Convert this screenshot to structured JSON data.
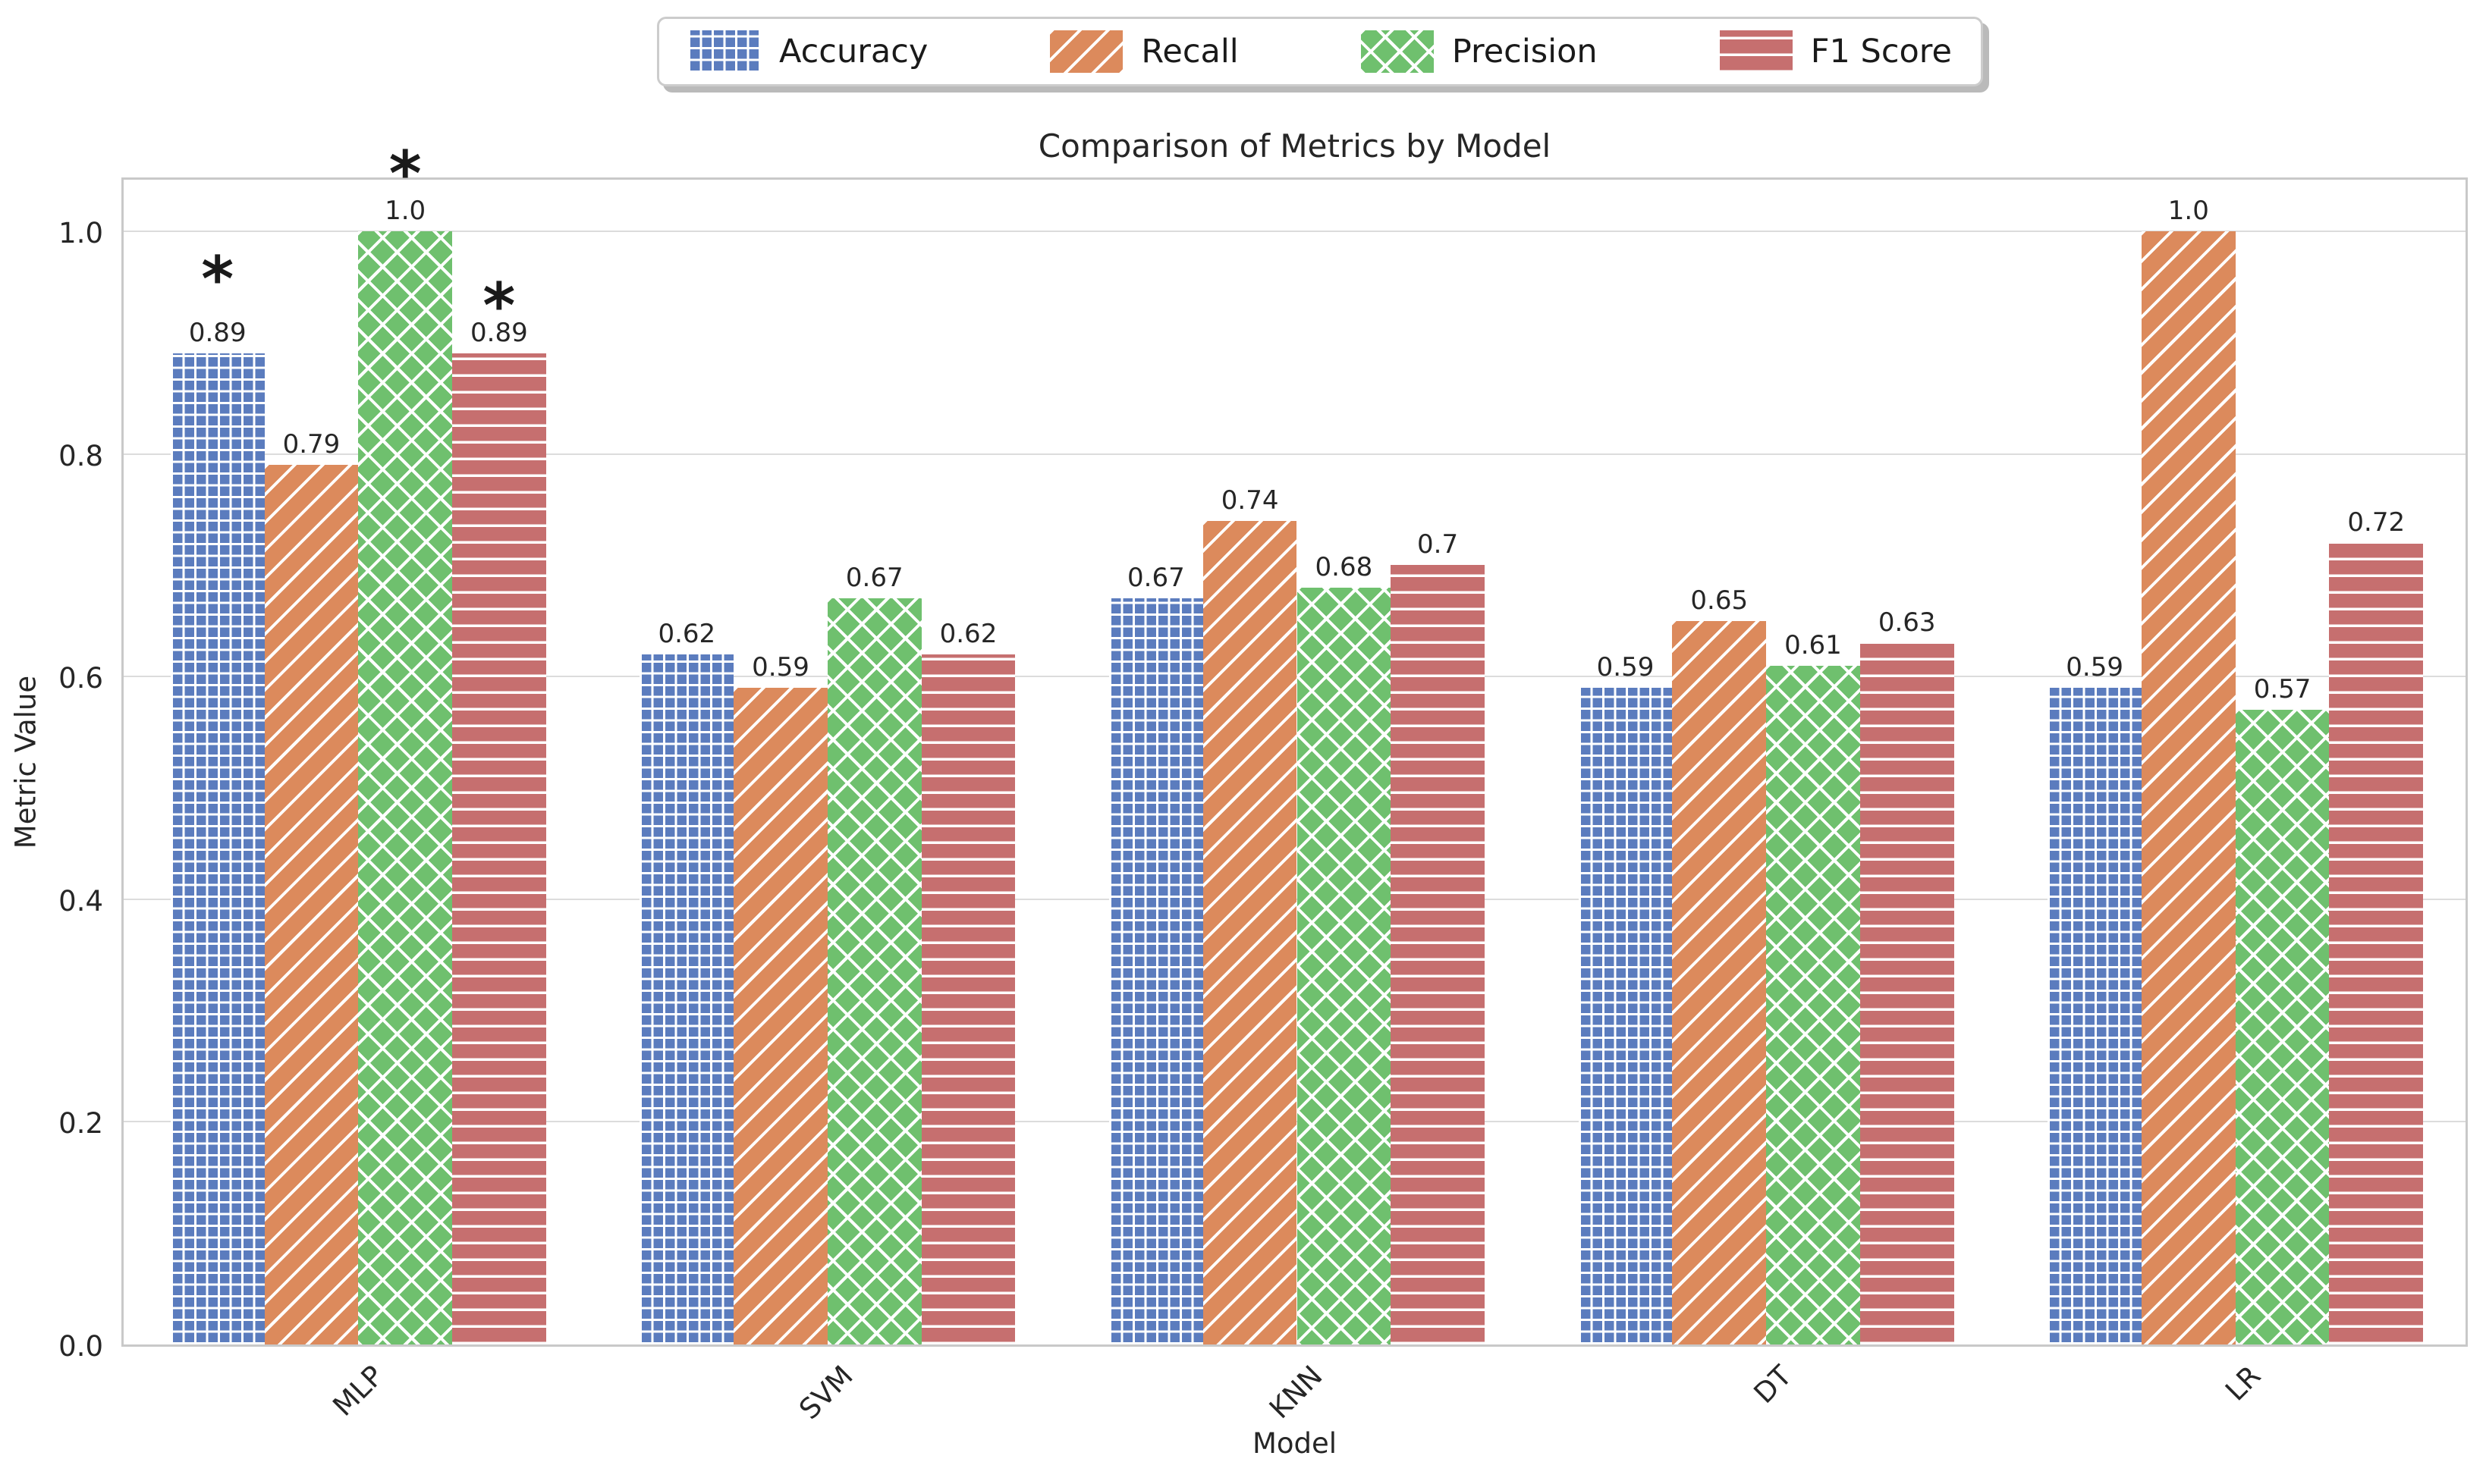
{
  "chart_data": {
    "type": "bar",
    "title": "Comparison of Metrics by Model",
    "xlabel": "Model",
    "ylabel": "Metric Value",
    "categories": [
      "MLP",
      "SVM",
      "KNN",
      "DT",
      "LR"
    ],
    "series": [
      {
        "name": "Accuracy",
        "color": "#5b7cbe",
        "hatch": "grid",
        "values": [
          0.89,
          0.62,
          0.67,
          0.59,
          0.59
        ],
        "labels": [
          "0.89",
          "0.62",
          "0.67",
          "0.59",
          "0.59"
        ]
      },
      {
        "name": "Recall",
        "color": "#dc8a5c",
        "hatch": "diagonal",
        "values": [
          0.79,
          0.59,
          0.74,
          0.65,
          1.0
        ],
        "labels": [
          "0.79",
          "0.59",
          "0.74",
          "0.65",
          "1.0"
        ]
      },
      {
        "name": "Precision",
        "color": "#6fc06e",
        "hatch": "cross",
        "values": [
          1.0,
          0.67,
          0.68,
          0.61,
          0.57
        ],
        "labels": [
          "1.0",
          "0.67",
          "0.68",
          "0.61",
          "0.57"
        ]
      },
      {
        "name": "F1 Score",
        "color": "#c66f6f",
        "hatch": "horizontal",
        "values": [
          0.89,
          0.62,
          0.7,
          0.63,
          0.72
        ],
        "labels": [
          "0.89",
          "0.62",
          "0.7",
          "0.63",
          "0.72"
        ]
      }
    ],
    "yticks": [
      "0.0",
      "0.2",
      "0.4",
      "0.6",
      "0.8",
      "1.0"
    ],
    "ylim": [
      0,
      1.05
    ],
    "grid": true,
    "legend_position": "top-center",
    "annotations": [
      {
        "text": "*",
        "category": "MLP",
        "series": "Accuracy",
        "y": 0.968
      },
      {
        "text": "*",
        "category": "MLP",
        "series": "Precision",
        "y": 1.063
      },
      {
        "text": "*",
        "category": "MLP",
        "series": "F1 Score",
        "y": 0.944
      }
    ],
    "style": {
      "grid_color": "#dcdcdc",
      "spine_color": "#c9c9c9",
      "text_color": "#262626",
      "annotation_color": "#1a1a1a",
      "background": "#ffffff"
    }
  }
}
